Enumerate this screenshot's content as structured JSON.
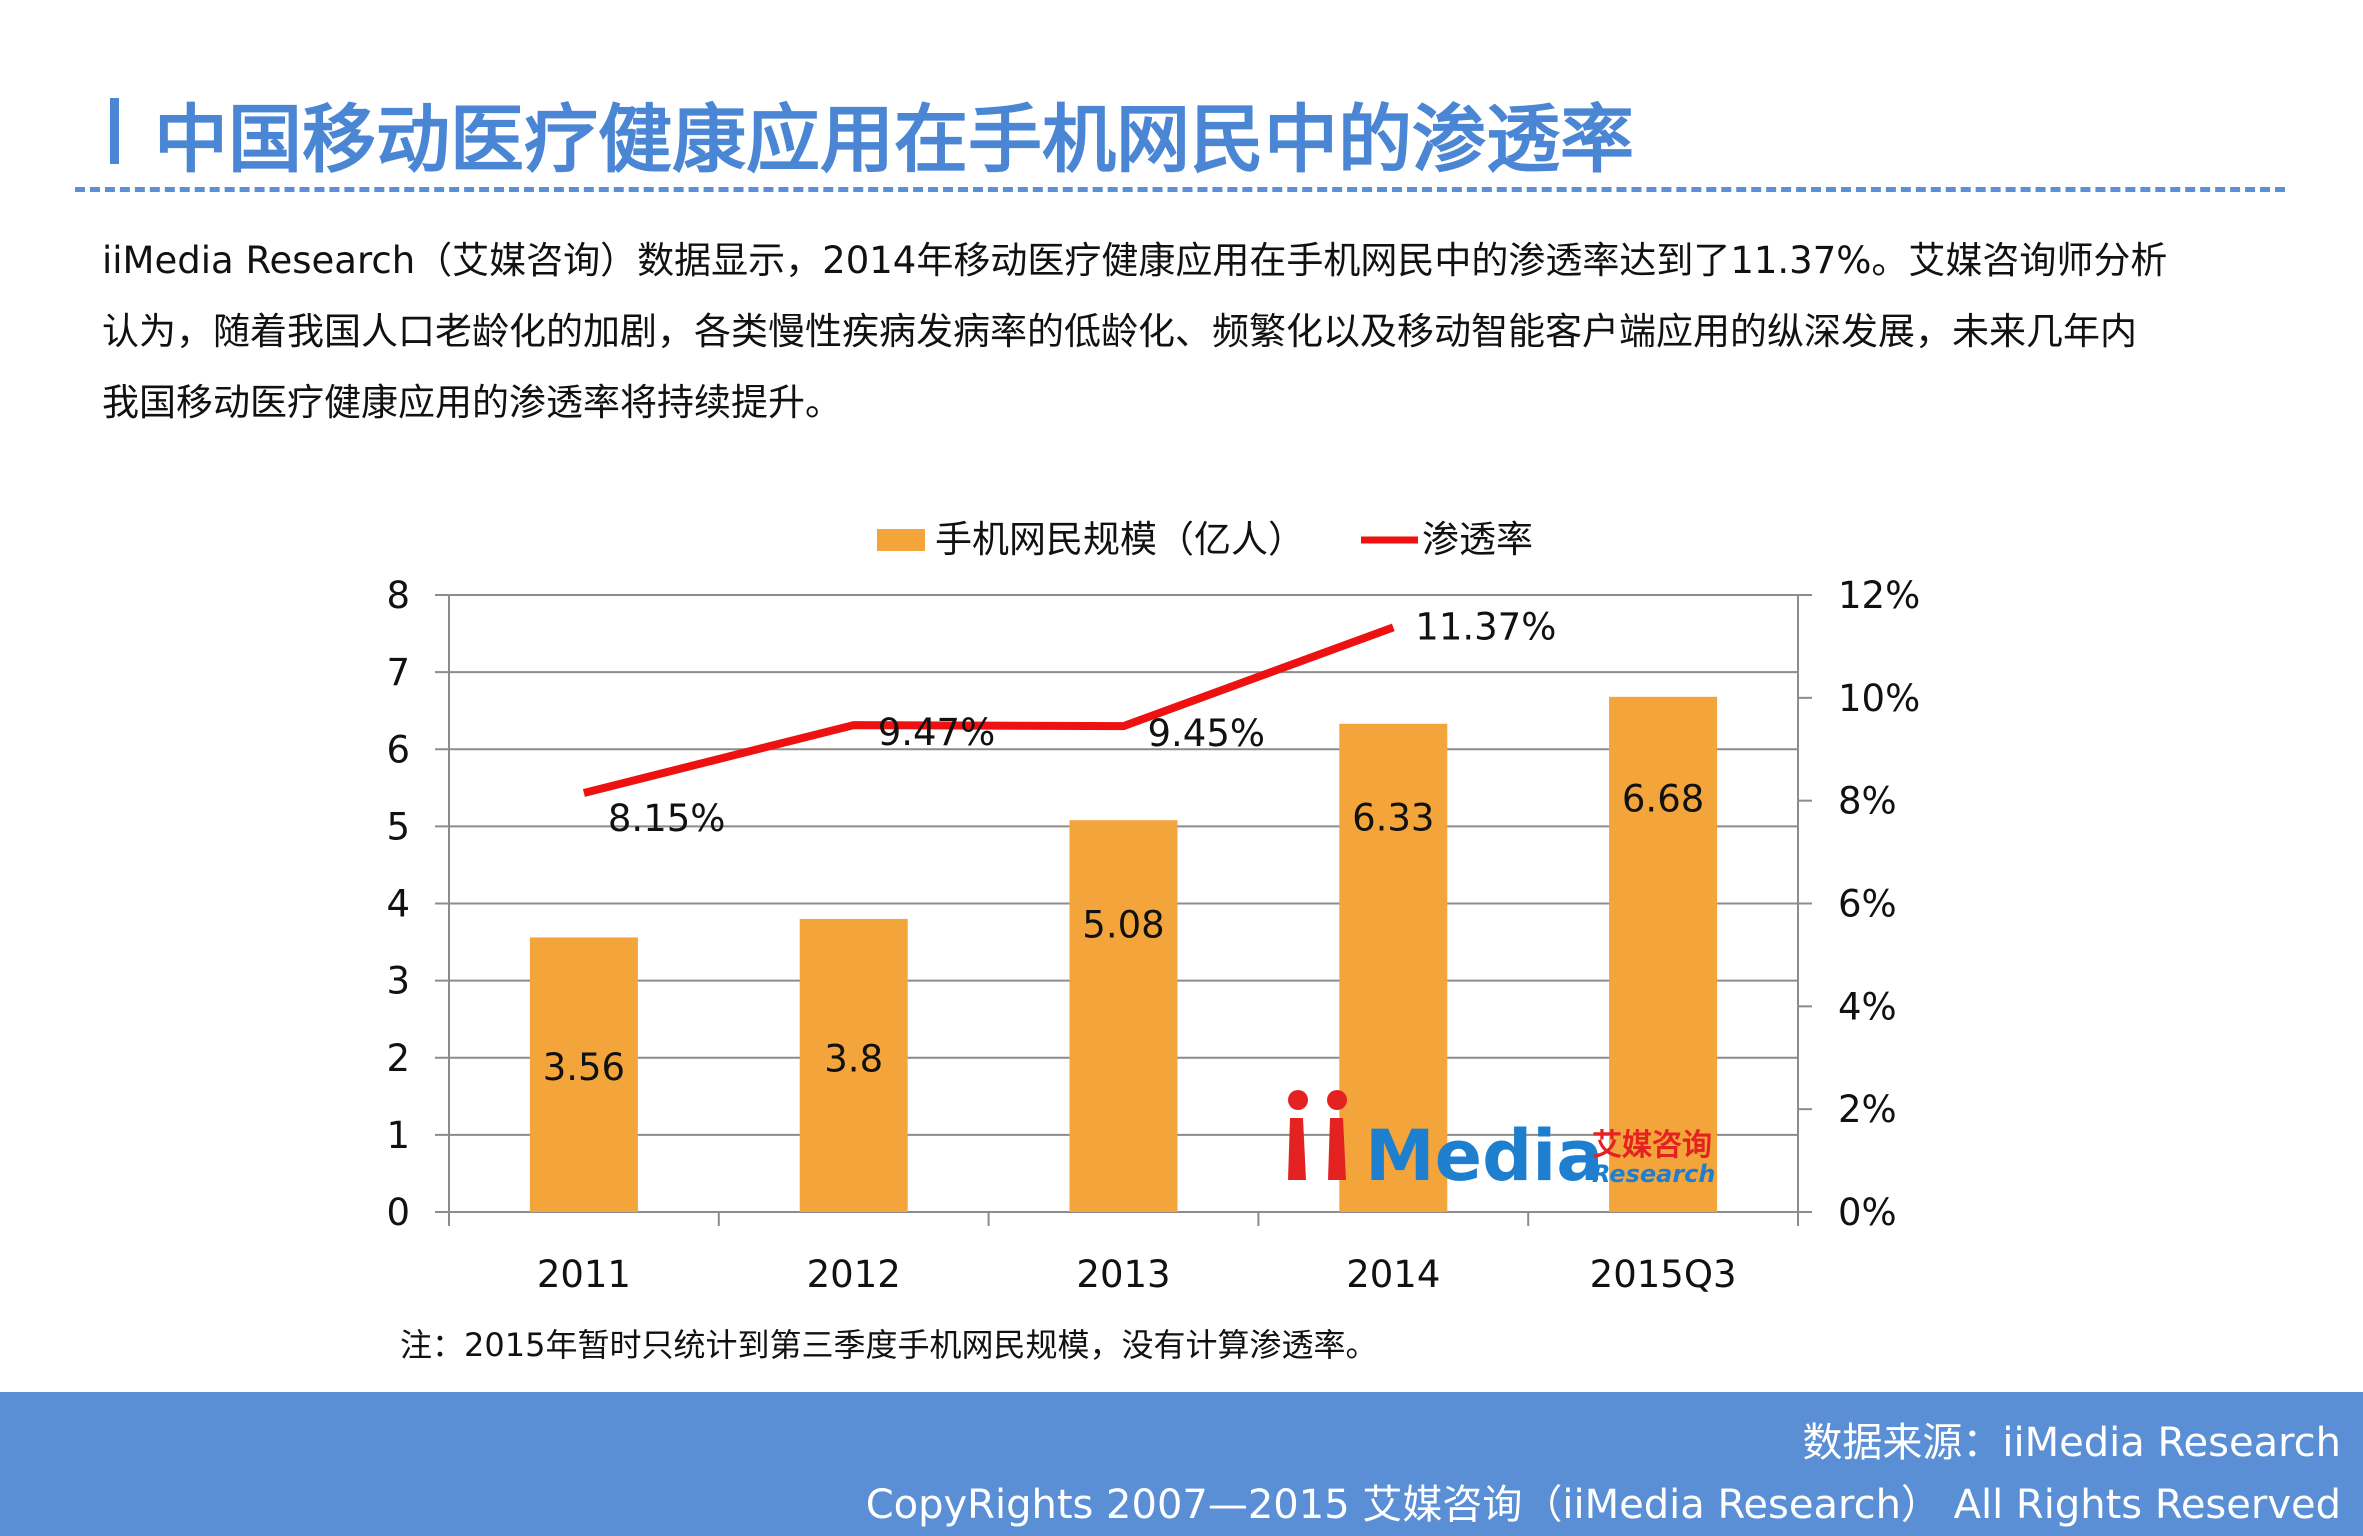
{
  "title": "中国移动医疗健康应用在手机网民中的渗透率",
  "paragraph": [
    "iiMedia Research（艾媒咨询）数据显示，2014年移动医疗健康应用在手机网民中的渗透率达到了11.37%。艾媒咨询师分析",
    "认为，随着我国人口老龄化的加剧，各类慢性疾病发病率的低龄化、频繁化以及移动智能客户端应用的纵深发展，未来几年内",
    "我国移动医疗健康应用的渗透率将持续提升。"
  ],
  "note": "注：2015年暂时只统计到第三季度手机网民规模，没有计算渗透率。",
  "watermark": {
    "logo": "iiMedia",
    "cn": "艾媒咨询",
    "sub": "Research"
  },
  "footer": {
    "source": "数据来源：iiMedia Research",
    "copyright": "CopyRights 2007—2015 艾媒咨询（iiMedia Research） All Rights Reserved"
  },
  "colors": {
    "bar": "#f3a53b",
    "line": "#ee1111",
    "accent": "#4a86d4",
    "footer": "#5a8fd6"
  },
  "chart_data": {
    "type": "bar+line",
    "categories": [
      "2011",
      "2012",
      "2013",
      "2014",
      "2015Q3"
    ],
    "series": [
      {
        "name": "手机网民规模（亿人）",
        "type": "bar",
        "axis": "left",
        "values": [
          3.56,
          3.8,
          5.08,
          6.33,
          6.68
        ],
        "labels": [
          "3.56",
          "3.8",
          "5.08",
          "6.33",
          "6.68"
        ]
      },
      {
        "name": "渗透率",
        "type": "line",
        "axis": "right",
        "values": [
          8.15,
          9.47,
          9.45,
          11.37,
          null
        ],
        "labels": [
          "8.15%",
          "9.47%",
          "9.45%",
          "11.37%",
          ""
        ]
      }
    ],
    "left_axis": {
      "ylim": [
        0,
        8
      ],
      "ticks": [
        "0",
        "1",
        "2",
        "3",
        "4",
        "5",
        "6",
        "7",
        "8"
      ]
    },
    "right_axis": {
      "ylim": [
        0,
        12
      ],
      "ticks": [
        "0%",
        "2%",
        "4%",
        "6%",
        "8%",
        "10%",
        "12%"
      ]
    },
    "grid": true,
    "legend": "top"
  }
}
